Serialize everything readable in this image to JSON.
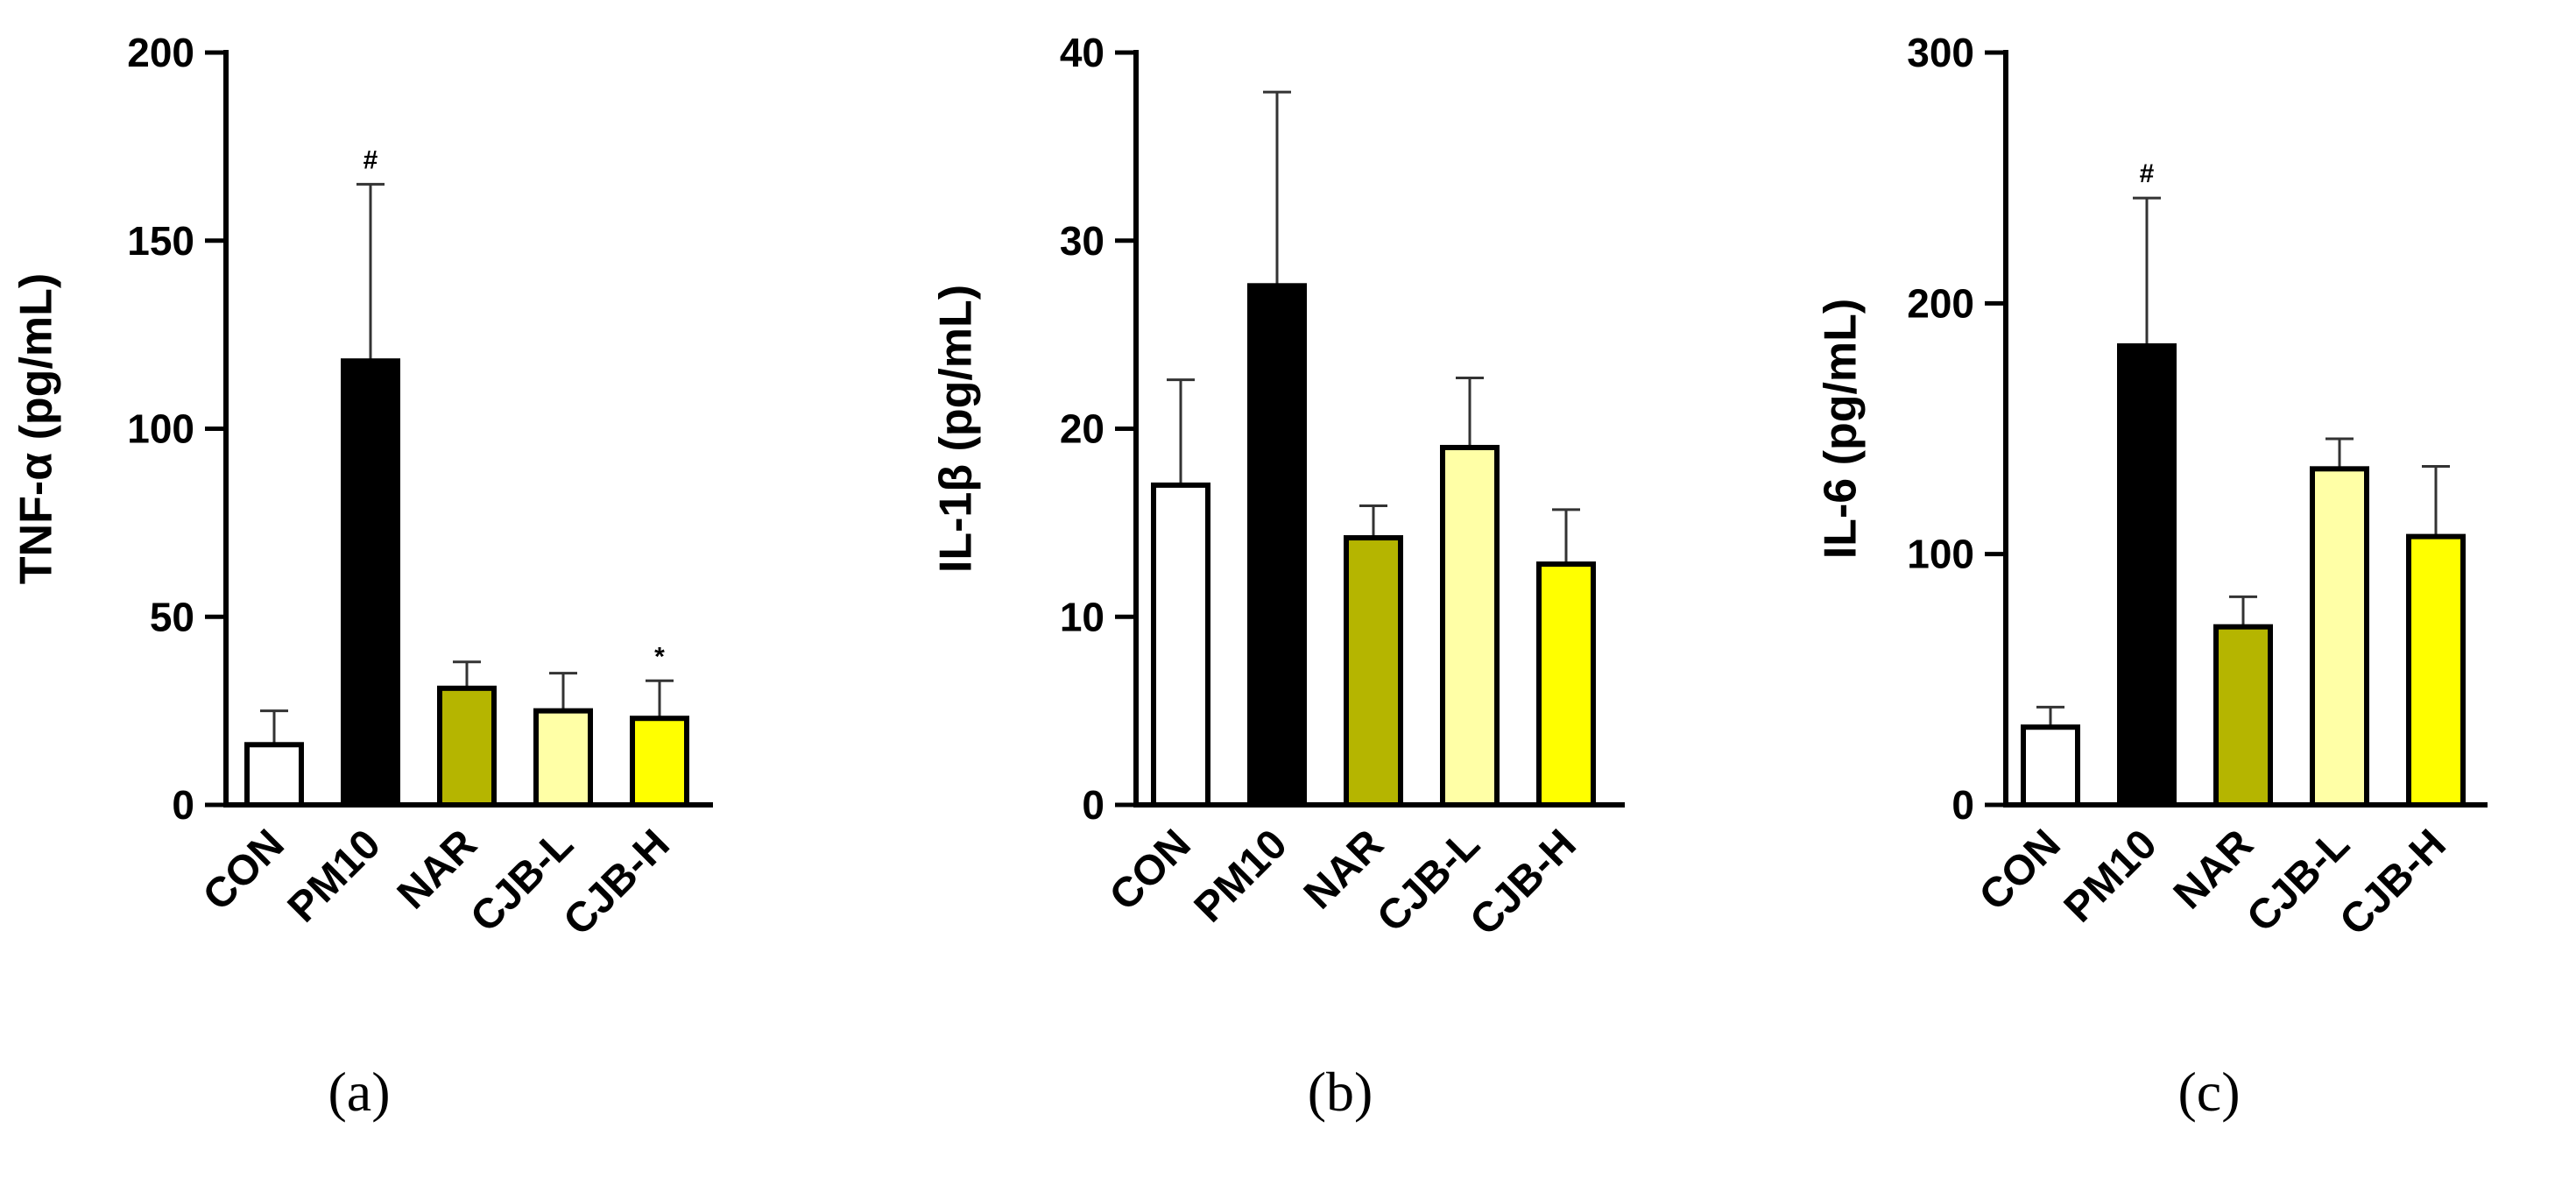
{
  "chart_data": [
    {
      "type": "bar",
      "panel_label": "(a)",
      "ylabel": "TNF-α (pg/mL)",
      "xlabel": "",
      "categories": [
        "CON",
        "PM10",
        "NAR",
        "CJB-L",
        "CJB-H"
      ],
      "values": [
        16,
        118,
        31,
        25,
        23
      ],
      "errors": [
        9,
        47,
        7,
        10,
        10
      ],
      "significance": [
        "",
        "#",
        "",
        "",
        "*"
      ],
      "ylim": [
        0,
        200
      ],
      "yticks": [
        0,
        50,
        100,
        150,
        200
      ],
      "grid": false,
      "bar_colors": [
        "#ffffff",
        "#000000",
        "#b5b500",
        "#ffffa6",
        "#ffff00"
      ]
    },
    {
      "type": "bar",
      "panel_label": "(b)",
      "ylabel": "IL-1β (pg/mL)",
      "xlabel": "",
      "categories": [
        "CON",
        "PM10",
        "NAR",
        "CJB-L",
        "CJB-H"
      ],
      "values": [
        17,
        27.6,
        14.2,
        19,
        12.8
      ],
      "errors": [
        5.6,
        10.3,
        1.7,
        3.7,
        2.9
      ],
      "significance": [
        "",
        "",
        "",
        "",
        ""
      ],
      "ylim": [
        0,
        40
      ],
      "yticks": [
        0,
        10,
        20,
        30,
        40
      ],
      "grid": false,
      "bar_colors": [
        "#ffffff",
        "#000000",
        "#b5b500",
        "#ffffa6",
        "#ffff00"
      ]
    },
    {
      "type": "bar",
      "panel_label": "(c)",
      "ylabel": "IL-6 (pg/mL)",
      "xlabel": "",
      "categories": [
        "CON",
        "PM10",
        "NAR",
        "CJB-L",
        "CJB-H"
      ],
      "values": [
        31,
        183,
        71,
        134,
        107
      ],
      "errors": [
        8,
        59,
        12,
        12,
        28
      ],
      "significance": [
        "",
        "#",
        "",
        "",
        ""
      ],
      "ylim": [
        0,
        300
      ],
      "yticks": [
        0,
        100,
        200,
        300
      ],
      "grid": false,
      "bar_colors": [
        "#ffffff",
        "#000000",
        "#b5b500",
        "#ffffa6",
        "#ffff00"
      ]
    }
  ]
}
